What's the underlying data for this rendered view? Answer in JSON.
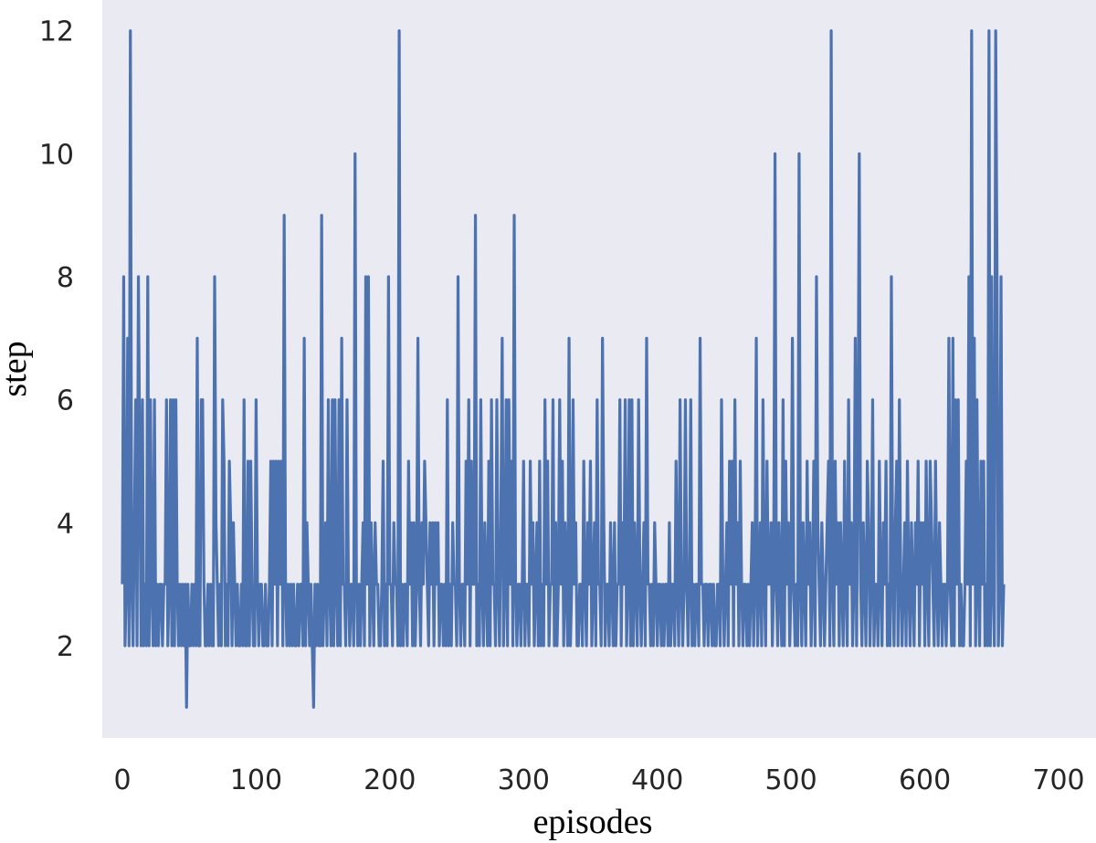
{
  "colors": {
    "plot_background": "#eaeaf2",
    "line": "#4c72b0",
    "text": "#262626"
  },
  "chart_data": {
    "type": "line",
    "xlabel": "episodes",
    "ylabel": "step",
    "title": "",
    "grid": false,
    "xlim": [
      -15,
      728
    ],
    "ylim": [
      0.5,
      12.5
    ],
    "xticks": [
      0,
      100,
      200,
      300,
      400,
      500,
      600,
      700
    ],
    "yticks": [
      2,
      4,
      6,
      8,
      10,
      12
    ],
    "xtick_labels": [
      "0",
      "100",
      "200",
      "300",
      "400",
      "500",
      "600",
      "700"
    ],
    "ytick_labels": [
      "2",
      "4",
      "6",
      "8",
      "10",
      "12"
    ],
    "series": [
      {
        "x_start": 0,
        "x_step": 1,
        "values": [
          3,
          8,
          2,
          3,
          7,
          2,
          12,
          3,
          2,
          4,
          6,
          2,
          8,
          5,
          2,
          6,
          2,
          3,
          2,
          8,
          2,
          6,
          3,
          2,
          6,
          2,
          3,
          2,
          3,
          3,
          2,
          3,
          3,
          6,
          2,
          3,
          6,
          2,
          6,
          2,
          6,
          3,
          2,
          3,
          2,
          3,
          2,
          3,
          1,
          3,
          2,
          2,
          3,
          2,
          3,
          2,
          7,
          2,
          2,
          6,
          6,
          3,
          2,
          2,
          3,
          2,
          3,
          2,
          2,
          8,
          4,
          3,
          2,
          3,
          2,
          6,
          5,
          2,
          3,
          2,
          5,
          4,
          2,
          4,
          3,
          2,
          3,
          2,
          2,
          3,
          2,
          6,
          2,
          2,
          5,
          2,
          5,
          3,
          2,
          2,
          6,
          3,
          2,
          3,
          3,
          2,
          2,
          3,
          2,
          2,
          3,
          5,
          2,
          5,
          3,
          5,
          2,
          5,
          3,
          5,
          2,
          9,
          3,
          2,
          3,
          2,
          3,
          2,
          3,
          2,
          2,
          3,
          2,
          3,
          3,
          2,
          7,
          2,
          4,
          3,
          2,
          3,
          2,
          1,
          3,
          2,
          3,
          2,
          2,
          9,
          2,
          3,
          4,
          2,
          6,
          3,
          2,
          6,
          2,
          6,
          3,
          2,
          6,
          2,
          7,
          3,
          3,
          2,
          6,
          3,
          2,
          3,
          3,
          2,
          10,
          3,
          2,
          3,
          2,
          3,
          4,
          2,
          8,
          3,
          8,
          2,
          4,
          3,
          2,
          4,
          3,
          3,
          2,
          2,
          3,
          5,
          2,
          3,
          2,
          8,
          3,
          3,
          2,
          4,
          3,
          3,
          2,
          12,
          2,
          3,
          2,
          3,
          3,
          2,
          5,
          3,
          4,
          2,
          4,
          2,
          3,
          7,
          3,
          2,
          4,
          3,
          5,
          4,
          3,
          2,
          4,
          3,
          4,
          2,
          4,
          3,
          4,
          2,
          3,
          3,
          2,
          3,
          2,
          6,
          2,
          3,
          2,
          4,
          3,
          3,
          2,
          8,
          3,
          2,
          3,
          3,
          2,
          5,
          3,
          6,
          2,
          5,
          3,
          3,
          9,
          2,
          3,
          2,
          6,
          3,
          2,
          4,
          3,
          2,
          5,
          2,
          6,
          3,
          3,
          2,
          6,
          3,
          2,
          4,
          7,
          2,
          3,
          6,
          2,
          6,
          3,
          5,
          2,
          9,
          3,
          2,
          3,
          3,
          2,
          3,
          5,
          2,
          3,
          3,
          2,
          5,
          3,
          4,
          2,
          3,
          4,
          2,
          5,
          2,
          3,
          2,
          6,
          3,
          5,
          2,
          3,
          3,
          6,
          2,
          4,
          2,
          3,
          6,
          3,
          5,
          2,
          4,
          3,
          2,
          7,
          2,
          3,
          6,
          3,
          4,
          2,
          2,
          3,
          3,
          2,
          5,
          3,
          2,
          4,
          3,
          5,
          2,
          3,
          4,
          2,
          6,
          3,
          3,
          2,
          7,
          4,
          2,
          3,
          3,
          2,
          4,
          3,
          2,
          4,
          2,
          3,
          3,
          6,
          2,
          4,
          3,
          6,
          2,
          3,
          6,
          2,
          6,
          2,
          4,
          3,
          2,
          6,
          3,
          2,
          3,
          4,
          2,
          7,
          3,
          3,
          2,
          3,
          2,
          4,
          3,
          2,
          3,
          3,
          2,
          3,
          2,
          3,
          3,
          2,
          4,
          2,
          3,
          3,
          2,
          5,
          3,
          2,
          6,
          3,
          2,
          3,
          6,
          3,
          2,
          3,
          6,
          2,
          3,
          2,
          3,
          3,
          2,
          7,
          3,
          3,
          2,
          3,
          3,
          2,
          3,
          3,
          2,
          3,
          2,
          2,
          3,
          3,
          2,
          6,
          3,
          2,
          3,
          4,
          2,
          5,
          3,
          5,
          2,
          6,
          3,
          4,
          2,
          5,
          3,
          2,
          3,
          3,
          2,
          3,
          2,
          3,
          4,
          2,
          3,
          7,
          2,
          3,
          4,
          2,
          6,
          3,
          2,
          5,
          3,
          3,
          4,
          2,
          3,
          10,
          3,
          2,
          4,
          3,
          2,
          6,
          2,
          5,
          3,
          4,
          2,
          3,
          7,
          3,
          2,
          3,
          2,
          10,
          3,
          2,
          4,
          3,
          2,
          5,
          3,
          4,
          2,
          3,
          5,
          2,
          8,
          4,
          3,
          2,
          4,
          3,
          2,
          3,
          4,
          5,
          2,
          12,
          3,
          2,
          5,
          3,
          4,
          2,
          4,
          3,
          2,
          5,
          3,
          2,
          6,
          3,
          4,
          2,
          3,
          7,
          2,
          5,
          10,
          3,
          2,
          4,
          3,
          2,
          5,
          4,
          2,
          3,
          6,
          2,
          3,
          3,
          2,
          5,
          3,
          2,
          4,
          3,
          5,
          2,
          3,
          2,
          8,
          3,
          2,
          4,
          5,
          2,
          6,
          3,
          2,
          3,
          4,
          2,
          5,
          3,
          2,
          4,
          3,
          2,
          4,
          3,
          5,
          2,
          4,
          3,
          4,
          2,
          5,
          3,
          2,
          5,
          4,
          3,
          2,
          5,
          3,
          2,
          4,
          3,
          2,
          3,
          3,
          2,
          3,
          7,
          3,
          2,
          7,
          2,
          6,
          3,
          6,
          2,
          3,
          2,
          2,
          3,
          5,
          3,
          8,
          2,
          12,
          3,
          7,
          2,
          6,
          3,
          2,
          5,
          3,
          5,
          2,
          3,
          2,
          12,
          2,
          8,
          3,
          2,
          12,
          8,
          2,
          3,
          8,
          2,
          3
        ]
      }
    ]
  }
}
